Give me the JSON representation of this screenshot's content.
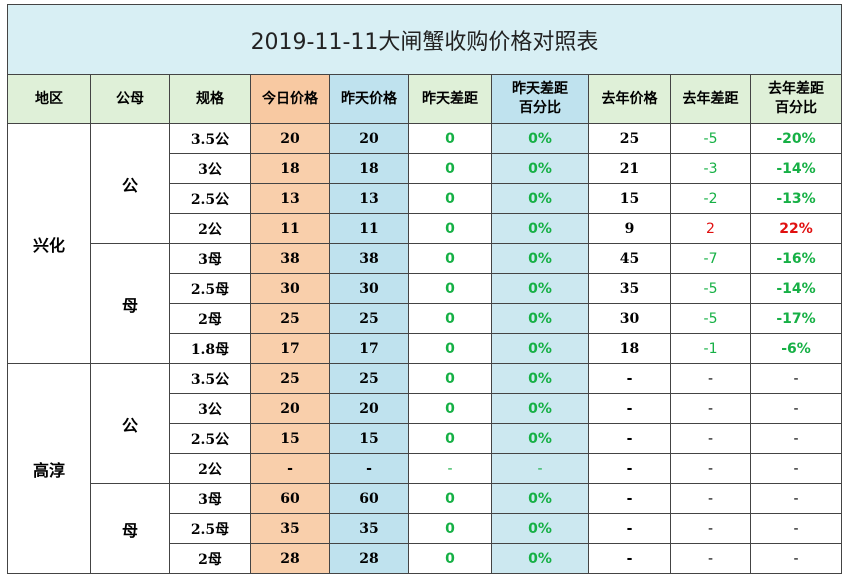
{
  "title": "2019-11-11大闸蟹收购价格对照表",
  "headers": [
    "地区",
    "公母",
    "规格",
    "今日价格",
    "昨天价格",
    "昨天差距",
    "昨天差距\n百分比",
    "去年价格",
    "去年差距",
    "去年差距\n百分比"
  ],
  "regions": [
    {
      "name": "兴化",
      "groups": [
        {
          "sex": "公",
          "rows": [
            {
              "spec": "3.5公",
              "today": "20",
              "yesterday": "20",
              "diff": "0",
              "pct": "0%",
              "last_year": "25",
              "ly_diff": "-5",
              "ly_pct": "-20%"
            },
            {
              "spec": "3公",
              "today": "18",
              "yesterday": "18",
              "diff": "0",
              "pct": "0%",
              "last_year": "21",
              "ly_diff": "-3",
              "ly_pct": "-14%"
            },
            {
              "spec": "2.5公",
              "today": "13",
              "yesterday": "13",
              "diff": "0",
              "pct": "0%",
              "last_year": "15",
              "ly_diff": "-2",
              "ly_pct": "-13%"
            },
            {
              "spec": "2公",
              "today": "11",
              "yesterday": "11",
              "diff": "0",
              "pct": "0%",
              "last_year": "9",
              "ly_diff": "2",
              "ly_pct": "22%"
            }
          ]
        },
        {
          "sex": "母",
          "rows": [
            {
              "spec": "3母",
              "today": "38",
              "yesterday": "38",
              "diff": "0",
              "pct": "0%",
              "last_year": "45",
              "ly_diff": "-7",
              "ly_pct": "-16%"
            },
            {
              "spec": "2.5母",
              "today": "30",
              "yesterday": "30",
              "diff": "0",
              "pct": "0%",
              "last_year": "35",
              "ly_diff": "-5",
              "ly_pct": "-14%"
            },
            {
              "spec": "2母",
              "today": "25",
              "yesterday": "25",
              "diff": "0",
              "pct": "0%",
              "last_year": "30",
              "ly_diff": "-5",
              "ly_pct": "-17%"
            },
            {
              "spec": "1.8母",
              "today": "17",
              "yesterday": "17",
              "diff": "0",
              "pct": "0%",
              "last_year": "18",
              "ly_diff": "-1",
              "ly_pct": "-6%"
            }
          ]
        }
      ]
    },
    {
      "name": "高淳",
      "groups": [
        {
          "sex": "公",
          "rows": [
            {
              "spec": "3.5公",
              "today": "25",
              "yesterday": "25",
              "diff": "0",
              "pct": "0%",
              "last_year": "-",
              "ly_diff": "-",
              "ly_pct": "-"
            },
            {
              "spec": "3公",
              "today": "20",
              "yesterday": "20",
              "diff": "0",
              "pct": "0%",
              "last_year": "-",
              "ly_diff": "-",
              "ly_pct": "-"
            },
            {
              "spec": "2.5公",
              "today": "15",
              "yesterday": "15",
              "diff": "0",
              "pct": "0%",
              "last_year": "-",
              "ly_diff": "-",
              "ly_pct": "-"
            },
            {
              "spec": "2公",
              "today": "-",
              "yesterday": "-",
              "diff": "-",
              "pct": "-",
              "last_year": "-",
              "ly_diff": "-",
              "ly_pct": "-"
            }
          ]
        },
        {
          "sex": "母",
          "rows": [
            {
              "spec": "3母",
              "today": "60",
              "yesterday": "60",
              "diff": "0",
              "pct": "0%",
              "last_year": "-",
              "ly_diff": "-",
              "ly_pct": "-"
            },
            {
              "spec": "2.5母",
              "today": "35",
              "yesterday": "35",
              "diff": "0",
              "pct": "0%",
              "last_year": "-",
              "ly_diff": "-",
              "ly_pct": "-"
            },
            {
              "spec": "2母",
              "today": "28",
              "yesterday": "28",
              "diff": "0",
              "pct": "0%",
              "last_year": "-",
              "ly_diff": "-",
              "ly_pct": "-"
            }
          ]
        }
      ]
    }
  ],
  "colors": {
    "title_bg": "#d8eff4",
    "today_bg": "#f9cfab",
    "yesterday_bg": "#bfe2ee",
    "pct_bg": "#cce8f0",
    "positive_green": "#16b045",
    "negative_red": "#e01010"
  }
}
